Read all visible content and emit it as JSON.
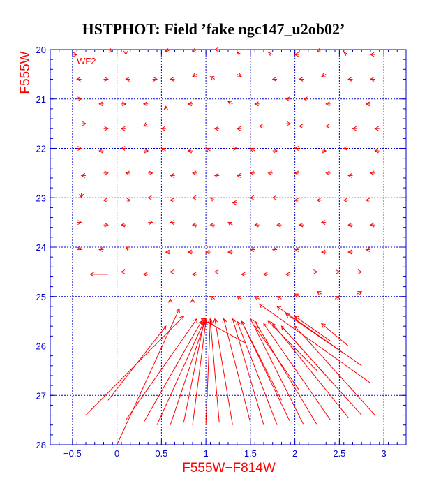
{
  "chart_data": {
    "type": "scatter",
    "title": "HSTPHOT: Field ’fake ngc147_u2ob02’",
    "panel_label": "WF2",
    "xlabel": "F555W−F814W",
    "ylabel": "F555W",
    "xlim": [
      -0.75,
      3.25
    ],
    "ylim": [
      28,
      20
    ],
    "xticks": [
      -0.5,
      0,
      0.5,
      1,
      1.5,
      2,
      2.5,
      3
    ],
    "xtick_labels": [
      "−0.5",
      "0",
      "0.5",
      "1",
      "1.5",
      "2",
      "2.5",
      "3"
    ],
    "yticks": [
      20,
      21,
      22,
      23,
      24,
      25,
      26,
      27,
      28
    ],
    "ytick_labels": [
      "20",
      "21",
      "22",
      "23",
      "24",
      "25",
      "26",
      "27",
      "28"
    ],
    "grid": true,
    "colors": {
      "axes": "#0000cc",
      "grid": "#0000cc",
      "data": "#ff0000",
      "labels": "#ff0000",
      "title": "#000000"
    },
    "arrow_series": {
      "name": "",
      "from": [
        [
          -0.5,
          20.1
        ],
        [
          -0.1,
          20.0
        ],
        [
          0.1,
          20.0
        ],
        [
          0.6,
          20.0
        ],
        [
          0.9,
          20.0
        ],
        [
          1.15,
          20.0
        ],
        [
          1.4,
          20.1
        ],
        [
          1.75,
          20.1
        ],
        [
          2.05,
          20.1
        ],
        [
          2.3,
          20.0
        ],
        [
          2.6,
          20.1
        ],
        [
          2.9,
          20.1
        ],
        [
          -0.4,
          20.6
        ],
        [
          -0.15,
          20.6
        ],
        [
          0.15,
          20.6
        ],
        [
          0.4,
          20.6
        ],
        [
          0.65,
          20.6
        ],
        [
          0.9,
          20.5
        ],
        [
          1.1,
          20.6
        ],
        [
          1.35,
          20.5
        ],
        [
          1.8,
          20.6
        ],
        [
          2.1,
          20.6
        ],
        [
          2.35,
          20.5
        ],
        [
          2.65,
          20.6
        ],
        [
          2.9,
          20.6
        ],
        [
          -0.45,
          21.0
        ],
        [
          -0.15,
          21.1
        ],
        [
          0.05,
          21.1
        ],
        [
          0.35,
          21.1
        ],
        [
          0.55,
          21.2
        ],
        [
          0.85,
          21.1
        ],
        [
          1.3,
          21.1
        ],
        [
          1.6,
          21.1
        ],
        [
          1.95,
          21.0
        ],
        [
          2.15,
          21.0
        ],
        [
          2.4,
          21.1
        ],
        [
          2.85,
          21.1
        ],
        [
          -0.4,
          21.5
        ],
        [
          -0.15,
          21.6
        ],
        [
          0.1,
          21.6
        ],
        [
          0.35,
          21.5
        ],
        [
          0.55,
          21.6
        ],
        [
          1.15,
          21.6
        ],
        [
          1.4,
          21.6
        ],
        [
          1.65,
          21.55
        ],
        [
          1.9,
          21.5
        ],
        [
          2.1,
          21.55
        ],
        [
          2.4,
          21.55
        ],
        [
          2.7,
          21.6
        ],
        [
          2.95,
          21.6
        ],
        [
          -0.45,
          22.0
        ],
        [
          -0.15,
          22.05
        ],
        [
          0.1,
          22.0
        ],
        [
          0.3,
          22.05
        ],
        [
          0.55,
          22.05
        ],
        [
          0.85,
          22.05
        ],
        [
          1.05,
          22.05
        ],
        [
          1.3,
          22.0
        ],
        [
          1.55,
          22.05
        ],
        [
          1.75,
          22.05
        ],
        [
          2.05,
          22.0
        ],
        [
          2.3,
          22.05
        ],
        [
          2.6,
          22.0
        ],
        [
          2.95,
          22.05
        ],
        [
          -0.35,
          22.55
        ],
        [
          -0.15,
          22.5
        ],
        [
          0.15,
          22.5
        ],
        [
          0.35,
          22.5
        ],
        [
          0.65,
          22.55
        ],
        [
          0.9,
          22.5
        ],
        [
          1.15,
          22.55
        ],
        [
          1.4,
          22.55
        ],
        [
          1.55,
          22.5
        ],
        [
          1.75,
          22.5
        ],
        [
          2.05,
          22.5
        ],
        [
          2.4,
          22.5
        ],
        [
          2.65,
          22.55
        ],
        [
          2.9,
          22.5
        ],
        [
          -0.4,
          22.9
        ],
        [
          -0.1,
          23.05
        ],
        [
          0.1,
          23.05
        ],
        [
          0.4,
          23.0
        ],
        [
          0.65,
          23.05
        ],
        [
          0.9,
          23.0
        ],
        [
          1.1,
          23.05
        ],
        [
          1.35,
          23.1
        ],
        [
          1.55,
          23.0
        ],
        [
          1.8,
          23.0
        ],
        [
          2.05,
          23.05
        ],
        [
          2.3,
          23.05
        ],
        [
          2.6,
          23.05
        ],
        [
          2.85,
          23.05
        ],
        [
          -0.45,
          23.5
        ],
        [
          -0.15,
          23.55
        ],
        [
          0.1,
          23.55
        ],
        [
          0.35,
          23.5
        ],
        [
          0.65,
          23.5
        ],
        [
          0.9,
          23.55
        ],
        [
          1.1,
          23.55
        ],
        [
          1.3,
          23.55
        ],
        [
          1.6,
          23.55
        ],
        [
          1.85,
          23.55
        ],
        [
          2.1,
          23.55
        ],
        [
          2.35,
          23.5
        ],
        [
          2.65,
          23.55
        ],
        [
          2.9,
          23.55
        ],
        [
          -0.45,
          24.0
        ],
        [
          -0.15,
          24.05
        ],
        [
          0.15,
          24.05
        ],
        [
          0.6,
          24.1
        ],
        [
          0.85,
          24.1
        ],
        [
          1.05,
          24.1
        ],
        [
          1.3,
          24.1
        ],
        [
          1.55,
          24.05
        ],
        [
          1.8,
          24.05
        ],
        [
          2.05,
          24.05
        ],
        [
          2.35,
          24.1
        ],
        [
          2.65,
          24.1
        ],
        [
          2.85,
          24.05
        ],
        [
          -0.1,
          24.55
        ],
        [
          0.1,
          24.5
        ],
        [
          0.35,
          24.55
        ],
        [
          0.65,
          24.5
        ],
        [
          0.9,
          24.55
        ],
        [
          1.15,
          24.5
        ],
        [
          1.45,
          24.55
        ],
        [
          1.7,
          24.55
        ],
        [
          1.95,
          24.55
        ],
        [
          2.2,
          24.5
        ],
        [
          2.45,
          24.5
        ],
        [
          2.7,
          24.5
        ],
        [
          0.6,
          25.1
        ],
        [
          0.85,
          25.1
        ],
        [
          1.1,
          25.05
        ],
        [
          1.4,
          25.05
        ],
        [
          1.6,
          25.05
        ],
        [
          1.85,
          25.05
        ],
        [
          2.05,
          25.0
        ],
        [
          2.3,
          24.95
        ],
        [
          2.45,
          25.05
        ],
        [
          2.7,
          24.95
        ],
        [
          -0.35,
          27.4
        ],
        [
          0.1,
          27.5
        ],
        [
          0.3,
          27.55
        ],
        [
          0.45,
          27.6
        ],
        [
          0.6,
          27.6
        ],
        [
          0.75,
          27.55
        ],
        [
          0.85,
          27.6
        ],
        [
          1.0,
          27.6
        ],
        [
          1.15,
          27.55
        ],
        [
          1.3,
          27.6
        ],
        [
          1.5,
          27.55
        ],
        [
          1.65,
          27.6
        ],
        [
          1.8,
          27.6
        ],
        [
          1.95,
          27.55
        ],
        [
          2.1,
          27.6
        ],
        [
          2.25,
          27.6
        ],
        [
          2.4,
          27.5
        ],
        [
          2.6,
          27.45
        ],
        [
          2.75,
          27.4
        ],
        [
          2.9,
          27.4
        ],
        [
          -0.1,
          27.1
        ],
        [
          0.0,
          28.0
        ],
        [
          1.45,
          25.95
        ],
        [
          2.85,
          26.75
        ],
        [
          2.75,
          26.4
        ],
        [
          2.55,
          26.15
        ],
        [
          2.4,
          25.9
        ],
        [
          2.6,
          26.0
        ],
        [
          2.25,
          26.5
        ],
        [
          2.45,
          26.8
        ],
        [
          2.05,
          26.9
        ],
        [
          1.85,
          27.1
        ]
      ],
      "to": [
        [
          -0.45,
          20.1
        ],
        [
          -0.05,
          20.05
        ],
        [
          0.1,
          20.1
        ],
        [
          0.55,
          20.05
        ],
        [
          0.85,
          20.05
        ],
        [
          1.1,
          20.0
        ],
        [
          1.35,
          20.05
        ],
        [
          1.7,
          20.05
        ],
        [
          2.0,
          20.1
        ],
        [
          2.25,
          20.05
        ],
        [
          2.55,
          20.05
        ],
        [
          2.85,
          20.1
        ],
        [
          -0.45,
          20.6
        ],
        [
          -0.1,
          20.6
        ],
        [
          0.1,
          20.6
        ],
        [
          0.45,
          20.6
        ],
        [
          0.6,
          20.6
        ],
        [
          0.85,
          20.55
        ],
        [
          1.05,
          20.55
        ],
        [
          1.4,
          20.55
        ],
        [
          1.75,
          20.6
        ],
        [
          2.05,
          20.6
        ],
        [
          2.3,
          20.55
        ],
        [
          2.6,
          20.6
        ],
        [
          2.85,
          20.6
        ],
        [
          -0.4,
          21.0
        ],
        [
          -0.2,
          21.1
        ],
        [
          0.1,
          21.1
        ],
        [
          0.3,
          21.1
        ],
        [
          0.55,
          21.15
        ],
        [
          0.8,
          21.1
        ],
        [
          1.25,
          21.05
        ],
        [
          1.55,
          21.1
        ],
        [
          1.9,
          21.0
        ],
        [
          2.1,
          21.0
        ],
        [
          2.35,
          21.1
        ],
        [
          2.8,
          21.1
        ],
        [
          -0.35,
          21.5
        ],
        [
          -0.1,
          21.6
        ],
        [
          0.05,
          21.6
        ],
        [
          0.3,
          21.55
        ],
        [
          0.5,
          21.6
        ],
        [
          1.1,
          21.6
        ],
        [
          1.35,
          21.6
        ],
        [
          1.6,
          21.55
        ],
        [
          1.95,
          21.5
        ],
        [
          2.05,
          21.55
        ],
        [
          2.35,
          21.55
        ],
        [
          2.65,
          21.6
        ],
        [
          2.9,
          21.6
        ],
        [
          -0.4,
          22.0
        ],
        [
          -0.2,
          22.05
        ],
        [
          0.05,
          22.0
        ],
        [
          0.35,
          22.05
        ],
        [
          0.5,
          22.0
        ],
        [
          0.8,
          22.05
        ],
        [
          1.0,
          22.0
        ],
        [
          1.35,
          22.0
        ],
        [
          1.5,
          22.0
        ],
        [
          1.8,
          22.05
        ],
        [
          2.0,
          22.0
        ],
        [
          2.35,
          22.05
        ],
        [
          2.55,
          22.0
        ],
        [
          2.9,
          22.05
        ],
        [
          -0.4,
          22.55
        ],
        [
          -0.1,
          22.5
        ],
        [
          0.1,
          22.5
        ],
        [
          0.4,
          22.5
        ],
        [
          0.6,
          22.55
        ],
        [
          0.85,
          22.5
        ],
        [
          1.1,
          22.55
        ],
        [
          1.35,
          22.55
        ],
        [
          1.5,
          22.5
        ],
        [
          1.7,
          22.5
        ],
        [
          2.0,
          22.5
        ],
        [
          2.35,
          22.5
        ],
        [
          2.6,
          22.55
        ],
        [
          2.85,
          22.5
        ],
        [
          -0.4,
          23.0
        ],
        [
          -0.15,
          23.05
        ],
        [
          0.15,
          23.05
        ],
        [
          0.35,
          23.0
        ],
        [
          0.6,
          23.05
        ],
        [
          0.85,
          23.0
        ],
        [
          1.05,
          23.0
        ],
        [
          1.3,
          23.1
        ],
        [
          1.5,
          23.0
        ],
        [
          1.75,
          23.0
        ],
        [
          2.0,
          23.05
        ],
        [
          2.25,
          23.05
        ],
        [
          2.55,
          23.05
        ],
        [
          2.8,
          23.05
        ],
        [
          -0.4,
          23.5
        ],
        [
          -0.1,
          23.55
        ],
        [
          0.05,
          23.55
        ],
        [
          0.4,
          23.5
        ],
        [
          0.6,
          23.5
        ],
        [
          0.85,
          23.55
        ],
        [
          1.05,
          23.55
        ],
        [
          1.25,
          23.5
        ],
        [
          1.55,
          23.55
        ],
        [
          1.8,
          23.55
        ],
        [
          2.05,
          23.55
        ],
        [
          2.3,
          23.5
        ],
        [
          2.6,
          23.55
        ],
        [
          2.85,
          23.55
        ],
        [
          -0.4,
          24.05
        ],
        [
          -0.2,
          24.05
        ],
        [
          0.1,
          24.0
        ],
        [
          0.55,
          24.1
        ],
        [
          0.8,
          24.1
        ],
        [
          1.0,
          24.1
        ],
        [
          1.25,
          24.1
        ],
        [
          1.5,
          24.05
        ],
        [
          1.75,
          24.05
        ],
        [
          2.0,
          24.05
        ],
        [
          2.3,
          24.1
        ],
        [
          2.6,
          24.1
        ],
        [
          2.8,
          24.05
        ],
        [
          -0.3,
          24.55
        ],
        [
          0.05,
          24.5
        ],
        [
          0.3,
          24.55
        ],
        [
          0.6,
          24.5
        ],
        [
          0.85,
          24.55
        ],
        [
          1.1,
          24.5
        ],
        [
          1.4,
          24.55
        ],
        [
          1.65,
          24.55
        ],
        [
          1.9,
          24.55
        ],
        [
          2.25,
          24.5
        ],
        [
          2.5,
          24.5
        ],
        [
          2.75,
          24.5
        ],
        [
          0.6,
          25.05
        ],
        [
          0.85,
          25.05
        ],
        [
          1.05,
          25.0
        ],
        [
          1.35,
          25.0
        ],
        [
          1.55,
          25.0
        ],
        [
          1.8,
          25.0
        ],
        [
          2.0,
          24.95
        ],
        [
          2.25,
          24.9
        ],
        [
          2.5,
          25.0
        ],
        [
          2.75,
          24.9
        ],
        [
          0.75,
          25.4
        ],
        [
          0.9,
          25.45
        ],
        [
          0.95,
          25.5
        ],
        [
          0.98,
          25.5
        ],
        [
          1.0,
          25.45
        ],
        [
          0.98,
          25.5
        ],
        [
          1.0,
          25.5
        ],
        [
          1.05,
          25.45
        ],
        [
          1.05,
          25.5
        ],
        [
          1.1,
          25.45
        ],
        [
          1.2,
          25.45
        ],
        [
          1.3,
          25.45
        ],
        [
          1.35,
          25.5
        ],
        [
          1.4,
          25.5
        ],
        [
          1.5,
          25.45
        ],
        [
          1.55,
          25.5
        ],
        [
          1.65,
          25.55
        ],
        [
          1.75,
          25.55
        ],
        [
          1.85,
          25.6
        ],
        [
          2.0,
          25.6
        ],
        [
          0.55,
          25.6
        ],
        [
          0.7,
          25.25
        ],
        [
          0.95,
          25.45
        ],
        [
          1.6,
          25.15
        ],
        [
          1.8,
          25.2
        ],
        [
          1.9,
          25.35
        ],
        [
          2.0,
          25.4
        ],
        [
          2.3,
          25.55
        ],
        [
          1.7,
          25.5
        ],
        [
          1.85,
          25.6
        ],
        [
          1.55,
          25.6
        ],
        [
          1.4,
          25.5
        ]
      ]
    }
  }
}
